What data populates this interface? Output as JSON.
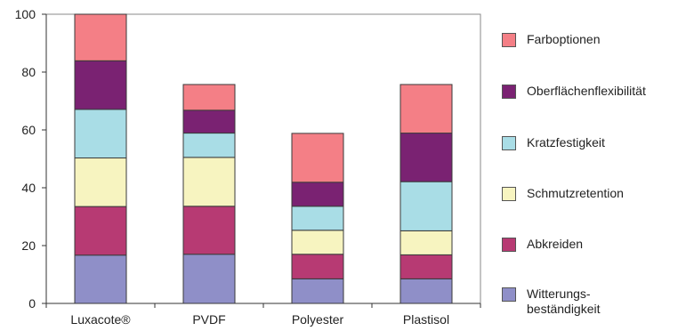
{
  "chart_data": {
    "type": "bar",
    "stacked": true,
    "categories": [
      "Luxacote®",
      "PVDF",
      "Polyester",
      "Plastisol"
    ],
    "series": [
      {
        "name": "Witterungs-\nbeständigkeit",
        "color": "#8f8fc8",
        "values": [
          16.7,
          17.0,
          8.5,
          8.5
        ]
      },
      {
        "name": "Abkreiden",
        "color": "#b73a73",
        "values": [
          16.8,
          16.6,
          8.5,
          8.3
        ]
      },
      {
        "name": "Schmutzretention",
        "color": "#f7f4c0",
        "values": [
          16.8,
          16.9,
          8.3,
          8.3
        ]
      },
      {
        "name": "Kratzfestigkeit",
        "color": "#a9dde6",
        "values": [
          16.8,
          8.4,
          8.3,
          17.0
        ]
      },
      {
        "name": "Oberflächenflexibilität",
        "color": "#7a2272",
        "values": [
          16.8,
          7.9,
          8.3,
          16.8
        ]
      },
      {
        "name": "Farboptionen",
        "color": "#f47f86",
        "values": [
          16.1,
          8.9,
          16.9,
          16.8
        ]
      }
    ],
    "legend_order": [
      "Farboptionen",
      "Oberflächenflexibilität",
      "Kratzfestigkeit",
      "Schmutzretention",
      "Abkreiden",
      "Witterungs-\nbeständigkeit"
    ],
    "ylim": [
      0,
      100
    ],
    "yticks": [
      "0",
      "20",
      "40",
      "60",
      "80",
      "100"
    ],
    "grid": false,
    "legend_position": "right"
  }
}
